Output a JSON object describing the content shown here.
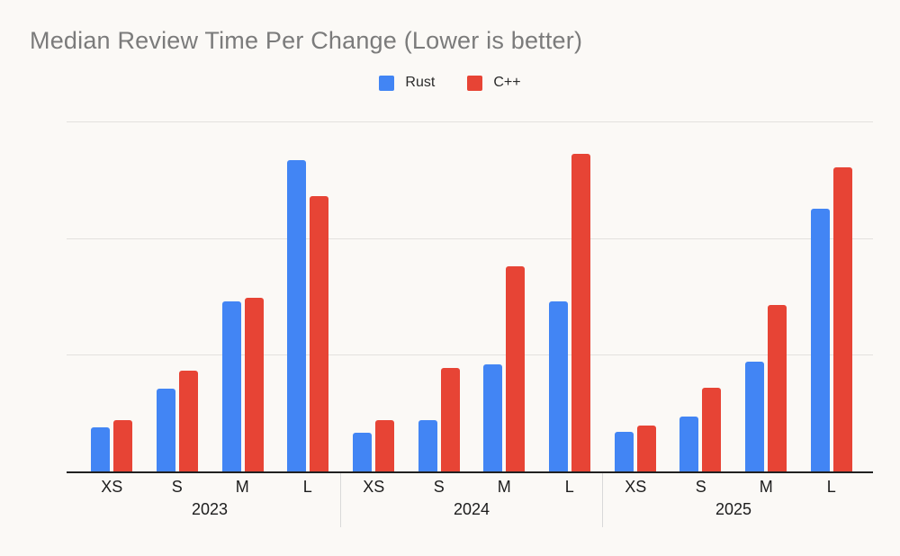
{
  "title": "Median Review Time Per Change (Lower is better)",
  "colors": {
    "background": "#fbf9f6",
    "title_text": "#7b7b7b",
    "axis_line": "#212121",
    "gridline": "#e3e1de",
    "label_text": "#1c1c1c",
    "group_separator": "#d9d9d9",
    "rust_blue": "#4285f4",
    "cpp_red": "#e74435"
  },
  "legend": {
    "position": "top-center",
    "items": [
      {
        "label": "Rust",
        "color": "#4285f4"
      },
      {
        "label": "C++",
        "color": "#e74435"
      }
    ]
  },
  "chart_data": {
    "type": "bar",
    "title": "Median Review Time Per Change (Lower is better)",
    "xlabel": "",
    "ylabel": "",
    "y_axis": {
      "labels_visible": false,
      "ylim": [
        0,
        30
      ],
      "gridline_interval": 10,
      "gridlines_shown": 3
    },
    "grid": "horizontal-only",
    "legend_position": "top-center",
    "groups": [
      {
        "label": "2023",
        "categories": [
          "XS",
          "S",
          "M",
          "L"
        ]
      },
      {
        "label": "2024",
        "categories": [
          "XS",
          "S",
          "M",
          "L"
        ]
      },
      {
        "label": "2025",
        "categories": [
          "XS",
          "S",
          "M",
          "L"
        ]
      }
    ],
    "series": [
      {
        "name": "Rust",
        "color": "#4285f4",
        "values": {
          "2023": [
            3.8,
            7.1,
            14.6,
            26.7
          ],
          "2024": [
            3.3,
            4.4,
            9.2,
            14.6
          ],
          "2025": [
            3.4,
            4.7,
            9.4,
            22.5
          ]
        }
      },
      {
        "name": "C++",
        "color": "#e74435",
        "values": {
          "2023": [
            4.4,
            8.6,
            14.9,
            23.6
          ],
          "2024": [
            4.4,
            8.9,
            17.6,
            27.2
          ],
          "2025": [
            3.9,
            7.2,
            14.3,
            26.1
          ]
        }
      }
    ]
  }
}
